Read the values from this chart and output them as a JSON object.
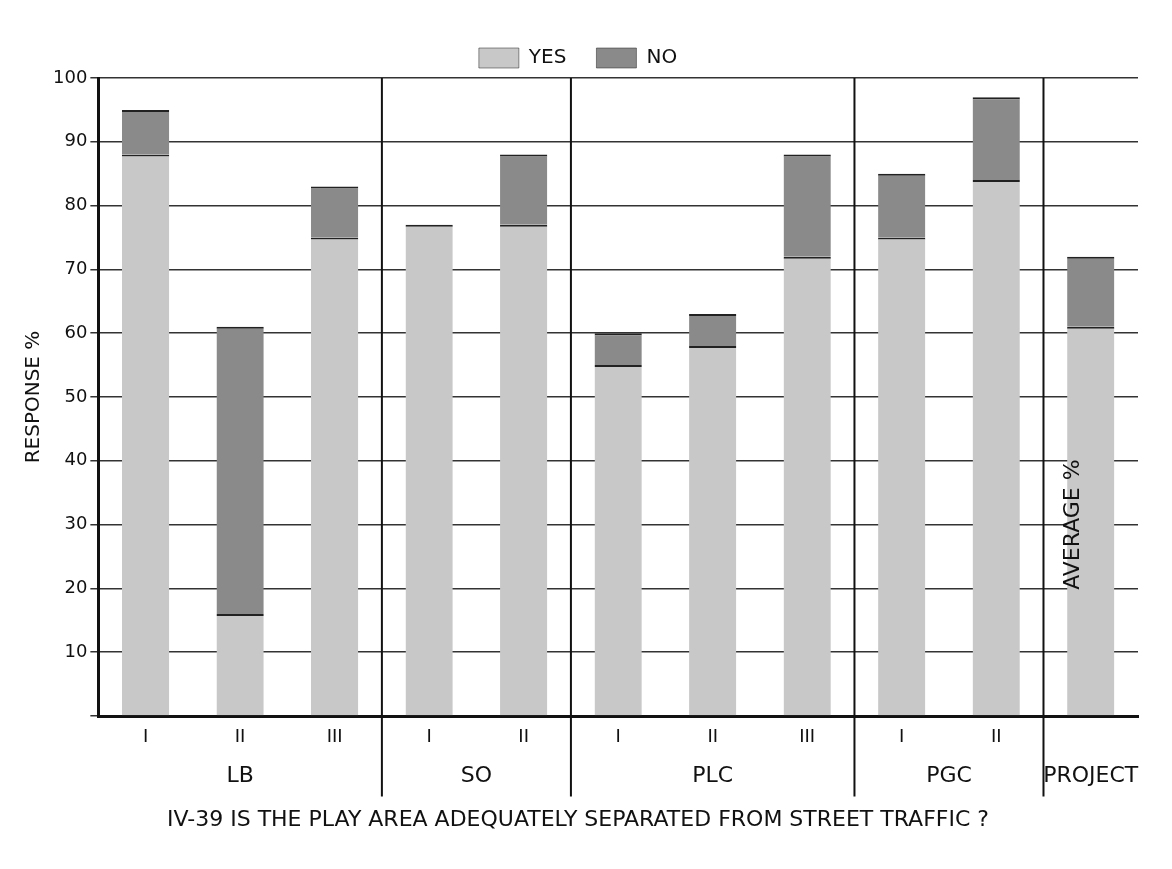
{
  "chart_data": {
    "type": "bar",
    "title": "IV-39 IS THE PLAY AREA ADEQUATELY SEPARATED FROM STREET TRAFFIC ?",
    "ylabel": "RESPONSE %",
    "categories": [
      "I",
      "II",
      "III",
      "I",
      "II",
      "I",
      "II",
      "III",
      "I",
      "II",
      null
    ],
    "series": [
      {
        "name": "YES",
        "color": "#c8c8c8",
        "values": [
          88,
          16,
          75,
          77,
          77,
          55,
          58,
          72,
          75,
          84,
          61
        ]
      },
      {
        "name": "NO",
        "color": "#8a8a8a",
        "values": [
          7,
          45,
          8,
          0,
          11,
          5,
          5,
          16,
          10,
          13,
          11
        ]
      }
    ],
    "stacked": true,
    "ylim": [
      0,
      100
    ],
    "yticks": [
      {
        "value": 0,
        "label": null
      },
      10,
      20,
      30,
      40,
      50,
      60,
      70,
      80,
      90,
      100
    ],
    "grid": "y",
    "legend": "top",
    "annotations": [
      "LB",
      "SO",
      "PLC",
      "PGC",
      "PROJECT",
      "AVERAGE %"
    ]
  }
}
